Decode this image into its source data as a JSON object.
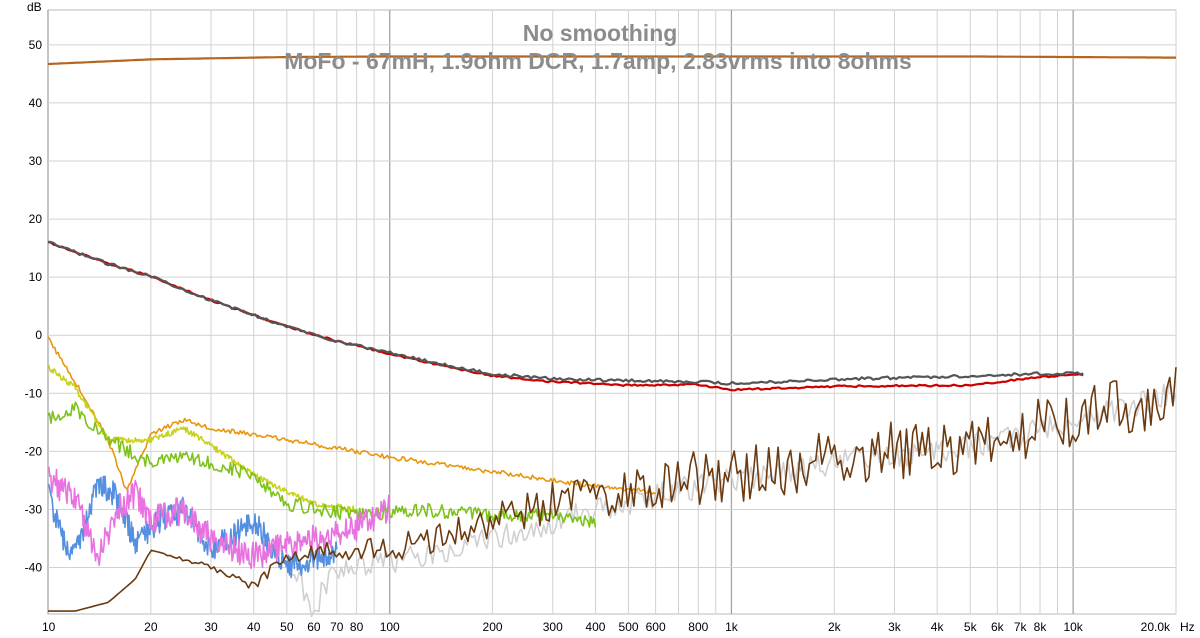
{
  "chart_data": {
    "type": "line",
    "title": "No smoothing",
    "subtitle": "MoFo - 67mH, 1.9ohm DCR, 1.7amp, 2.83vrms into 8ohms",
    "ylabel": "dB",
    "xlabel": "Hz",
    "x_scale": "log",
    "xlim": [
      10,
      20000
    ],
    "ylim": [
      -48,
      56
    ],
    "grid": true,
    "x_ticks": [
      "10",
      "20",
      "30",
      "40",
      "50",
      "60",
      "70",
      "80",
      "100",
      "200",
      "300",
      "400",
      "500",
      "600",
      "800",
      "1k",
      "2k",
      "3k",
      "4k",
      "5k",
      "6k",
      "7k",
      "8k",
      "10k",
      "20.0k"
    ],
    "y_ticks": [
      "50",
      "40",
      "30",
      "20",
      "10",
      "0",
      "-10",
      "-20",
      "-30",
      "-40"
    ],
    "series": [
      {
        "color": "#b5651d",
        "x": [
          10,
          20,
          50,
          100,
          1000,
          5000,
          10000,
          20000
        ],
        "values": [
          46.7,
          47.5,
          47.9,
          48.0,
          48.0,
          48.0,
          47.9,
          47.8
        ]
      },
      {
        "color": "#cc0000",
        "x": [
          10,
          15,
          20,
          30,
          50,
          70,
          100,
          150,
          200,
          300,
          500,
          800,
          1000,
          2000,
          5000,
          8000,
          10700
        ],
        "values": [
          16,
          12.3,
          10.2,
          6,
          1.5,
          -1,
          -3.2,
          -5.5,
          -7,
          -8,
          -8.6,
          -8.5,
          -9.4,
          -8.8,
          -8.6,
          -7.2,
          -6.8
        ]
      },
      {
        "color": "#555555",
        "x": [
          10,
          15,
          20,
          30,
          50,
          70,
          100,
          150,
          200,
          300,
          500,
          800,
          1000,
          2000,
          5000,
          8000,
          10700
        ],
        "values": [
          16,
          12.3,
          10.2,
          6,
          1.5,
          -1,
          -3,
          -5.3,
          -6.7,
          -7.5,
          -7.8,
          -8,
          -8.3,
          -7.6,
          -7,
          -6.6,
          -6.6
        ]
      },
      {
        "color": "#e8960c",
        "x": [
          10,
          12,
          15,
          17,
          20,
          25,
          30,
          50,
          100,
          150,
          200,
          300,
          400,
          500,
          600
        ],
        "values": [
          -0.5,
          -8,
          -18,
          -27,
          -17,
          -14.5,
          -16,
          -18,
          -21,
          -22.5,
          -23.5,
          -25,
          -26,
          -26.5,
          -27
        ]
      },
      {
        "color": "#c8d21e",
        "x": [
          10,
          12,
          15,
          20,
          25,
          30,
          40,
          50,
          60,
          80
        ],
        "values": [
          -5.5,
          -9,
          -18,
          -18,
          -16,
          -19,
          -24,
          -27,
          -29,
          -30
        ]
      },
      {
        "color": "#7cc21a",
        "x": [
          10,
          12,
          15,
          20,
          25,
          30,
          40,
          50,
          80,
          120,
          200,
          300,
          400
        ],
        "values": [
          -14.5,
          -12.5,
          -18,
          -22,
          -21,
          -22,
          -24,
          -29,
          -31,
          -30,
          -31,
          -31,
          -32
        ]
      },
      {
        "color": "#5590e0",
        "x": [
          10,
          11,
          12,
          14,
          16,
          18,
          20,
          25,
          30,
          40,
          50,
          70
        ],
        "values": [
          -27,
          -35,
          -38,
          -25,
          -28,
          -36,
          -33,
          -30,
          -37,
          -32,
          -40,
          -37
        ]
      },
      {
        "color": "#e872e0",
        "x": [
          10,
          12,
          14,
          16,
          18,
          20,
          25,
          30,
          40,
          60,
          80,
          100
        ],
        "values": [
          -24.5,
          -28,
          -38,
          -30,
          -27,
          -32,
          -30,
          -35,
          -38,
          -35,
          -33,
          -30
        ]
      },
      {
        "color": "#d0d0d0",
        "x": [
          50,
          60,
          70,
          100,
          200,
          400,
          800,
          2000,
          5000,
          10000,
          20000
        ],
        "values": [
          -39,
          -47,
          -40,
          -39,
          -35,
          -30,
          -26,
          -22,
          -19,
          -15,
          -10
        ]
      },
      {
        "color": "#6b3a10",
        "x": [
          10,
          12,
          15,
          18,
          20,
          30,
          40,
          50,
          70,
          100,
          200,
          300,
          500,
          800,
          1000,
          2000,
          3000,
          5000,
          8000,
          10000,
          20000
        ],
        "values": [
          -47.5,
          -47.5,
          -46,
          -42,
          -37,
          -40,
          -43,
          -38,
          -37,
          -37,
          -32,
          -29,
          -27,
          -25,
          -24,
          -21,
          -20,
          -19,
          -16,
          -14.5,
          -10.5
        ]
      }
    ]
  }
}
